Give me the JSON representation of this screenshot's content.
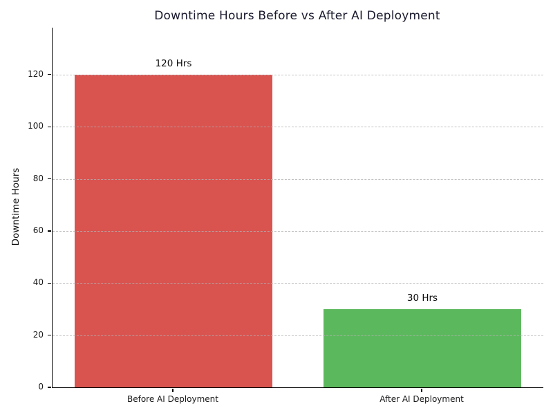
{
  "chart_data": {
    "type": "bar",
    "title": "Downtime Hours Before vs After AI Deployment",
    "ylabel": "Downtime Hours",
    "xlabel": "",
    "categories": [
      "Before AI Deployment",
      "After AI Deployment"
    ],
    "values": [
      120,
      30
    ],
    "bar_labels": [
      "120 Hrs",
      "30 Hrs"
    ],
    "bar_colors": [
      "#d9534f",
      "#5cb85c"
    ],
    "yticks": [
      0,
      20,
      40,
      60,
      80,
      100,
      120
    ],
    "ylim": [
      0,
      138
    ],
    "grid": "horizontal-dashed",
    "gridline_color": "#b2b2b2",
    "legend": null,
    "title_color": "#1a1a2e",
    "spines": [
      "left",
      "bottom"
    ]
  }
}
